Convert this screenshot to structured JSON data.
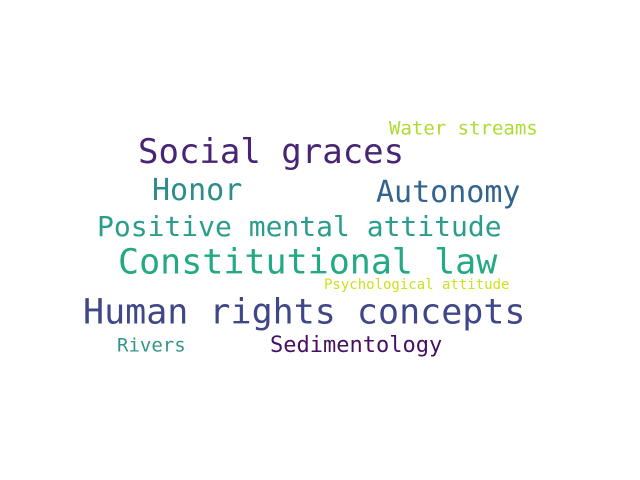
{
  "words": [
    {
      "text": "Water streams",
      "color": "#addc30"
    },
    {
      "text": "Social graces",
      "color": "#482475"
    },
    {
      "text": "Honor",
      "color": "#2c8e8c"
    },
    {
      "text": "Autonomy",
      "color": "#32648e"
    },
    {
      "text": "Positive mental attitude",
      "color": "#2a9d8c"
    },
    {
      "text": "Constitutional law",
      "color": "#23a983"
    },
    {
      "text": "Psychological attitude",
      "color": "#cde11d"
    },
    {
      "text": "Human rights concepts",
      "color": "#3f4788"
    },
    {
      "text": "Rivers",
      "color": "#33958a"
    },
    {
      "text": "Sedimentology",
      "color": "#471063"
    }
  ]
}
